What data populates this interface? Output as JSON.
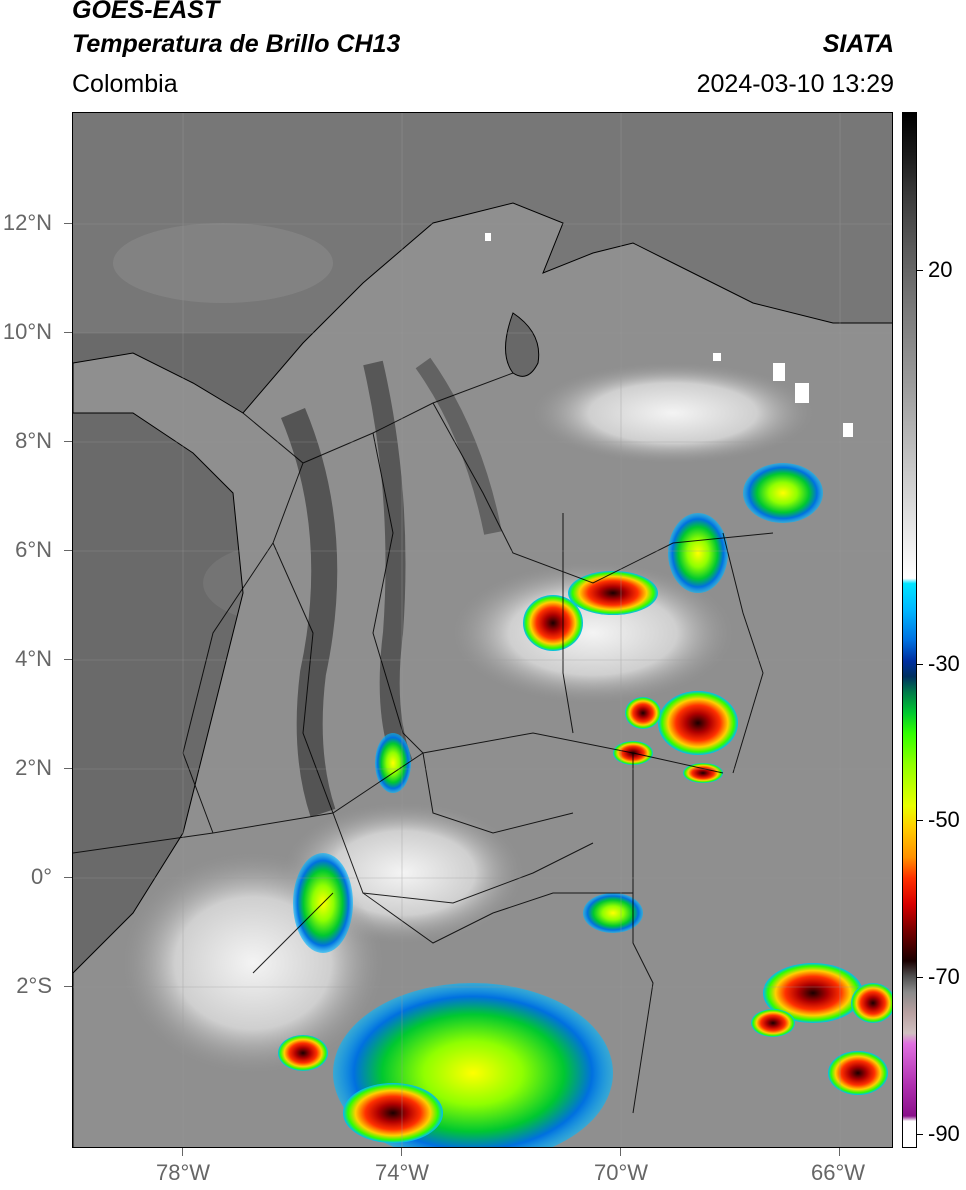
{
  "header": {
    "title_line1": "GOES-EAST",
    "title_line2": "Temperatura de Brillo CH13",
    "org": "SIATA",
    "region": "Colombia",
    "datetime": "2024-03-10 13:29"
  },
  "map": {
    "lat_labels": [
      "12°N",
      "10°N",
      "8°N",
      "6°N",
      "4°N",
      "2°N",
      "0°",
      "2°S"
    ],
    "lon_labels": [
      "78°W",
      "74°W",
      "70°W",
      "66°W"
    ]
  },
  "colorbar": {
    "labels": [
      "20",
      "-30",
      "-50",
      "-70",
      "-90"
    ]
  }
}
